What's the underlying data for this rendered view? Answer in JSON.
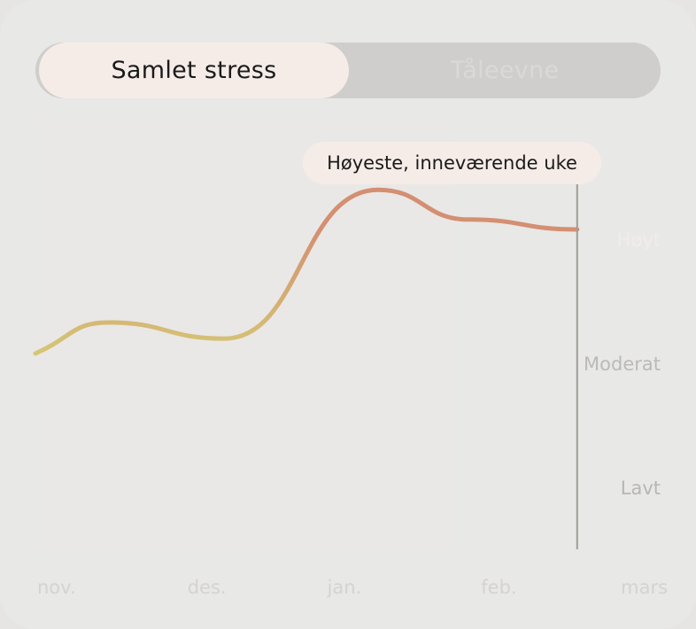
{
  "tabs": {
    "active_label": "Samlet stress",
    "inactive_label": "Tåleevne"
  },
  "tooltip": {
    "label": "Høyeste, inneværende uke"
  },
  "chart_data": {
    "type": "line",
    "y_levels": [
      "Lavt",
      "Moderat",
      "Høyt"
    ],
    "ylim": [
      0,
      3
    ],
    "x_tick_labels": [
      "nov.",
      "des.",
      "jan.",
      "feb.",
      "mars"
    ],
    "x_tick_positions_weeks": [
      0,
      4.3,
      8.3,
      12.7,
      16.7
    ],
    "xlim_weeks": [
      0,
      18.9
    ],
    "series": [
      {
        "x_weeks": [
          0,
          2.1,
          5.4,
          9.8,
          12.4,
          15.5
        ],
        "values": [
          1.6,
          1.85,
          1.72,
          2.92,
          2.68,
          2.6
        ]
      }
    ],
    "current_week_marker": 15.5,
    "colors": {
      "low": "#d6d676",
      "high": "#d48f72",
      "marker": "#a09d98"
    }
  }
}
